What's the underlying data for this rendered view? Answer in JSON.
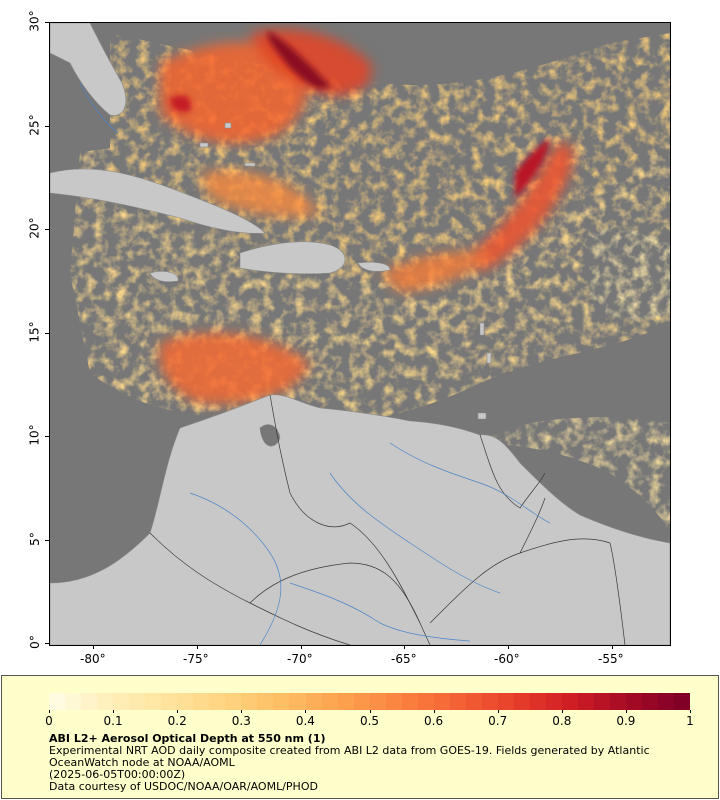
{
  "map": {
    "lat_labels": [
      "30°",
      "25°",
      "20°",
      "15°",
      "10°",
      "5°",
      "0°"
    ],
    "lon_labels": [
      "-80°",
      "-75°",
      "-70°",
      "-65°",
      "-60°",
      "-55°"
    ],
    "extent": {
      "lon_min": -82.2,
      "lon_max": -52.3,
      "lat_min": 0,
      "lat_max": 30
    }
  },
  "legend": {
    "title": "ABI L2+ Aerosol Optical Depth at 550 nm (1)",
    "description": "Experimental NRT AOD daily composite created from ABI L2 data from GOES-19. Fields generated by Atlantic OceanWatch node at NOAA/AOML",
    "date": "(2025-06-05T00:00:00Z)",
    "credit": "Data courtesy of USDOC/NOAA/OAR/AOML/PHOD",
    "colorbar_labels": [
      "0",
      "0.1",
      "0.2",
      "0.3",
      "0.4",
      "0.5",
      "0.6",
      "0.7",
      "0.8",
      "0.9",
      "1"
    ],
    "colors": [
      "#fffbe0",
      "#ffefb8",
      "#ffe39c",
      "#fed37f",
      "#fdbd63",
      "#fca24e",
      "#fb8440",
      "#f46435",
      "#e8402b",
      "#d11f25",
      "#a70b25",
      "#800026"
    ]
  },
  "colors": {
    "land": "#c8c8c8",
    "nodata": "#777777",
    "border": "#000000",
    "river": "#4a86c8"
  }
}
